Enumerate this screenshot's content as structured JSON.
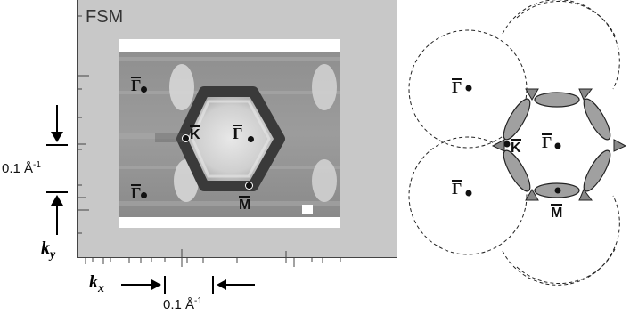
{
  "left_panel": {
    "title": "FSM",
    "labels": {
      "gamma_top": "Γ",
      "gamma_center": "Γ",
      "gamma_bottom": "Γ",
      "k_point": "K",
      "m_point": "M"
    },
    "scale_y": "0.1 Å",
    "scale_y_exp": "-1",
    "scale_x": "0.1 Å",
    "scale_x_exp": "-1",
    "axis_ky": "k",
    "axis_ky_sub": "y",
    "axis_kx": "k",
    "axis_kx_sub": "x"
  },
  "right_panel": {
    "labels": {
      "gamma_upper_left": "Γ",
      "gamma_center": "Γ",
      "gamma_lower_left": "Γ",
      "k_point": "K",
      "m_point": "M"
    }
  },
  "colors": {
    "panel_background": "#c8c8c8",
    "pocket_fill": "#a0a0a0",
    "line": "#111111"
  }
}
